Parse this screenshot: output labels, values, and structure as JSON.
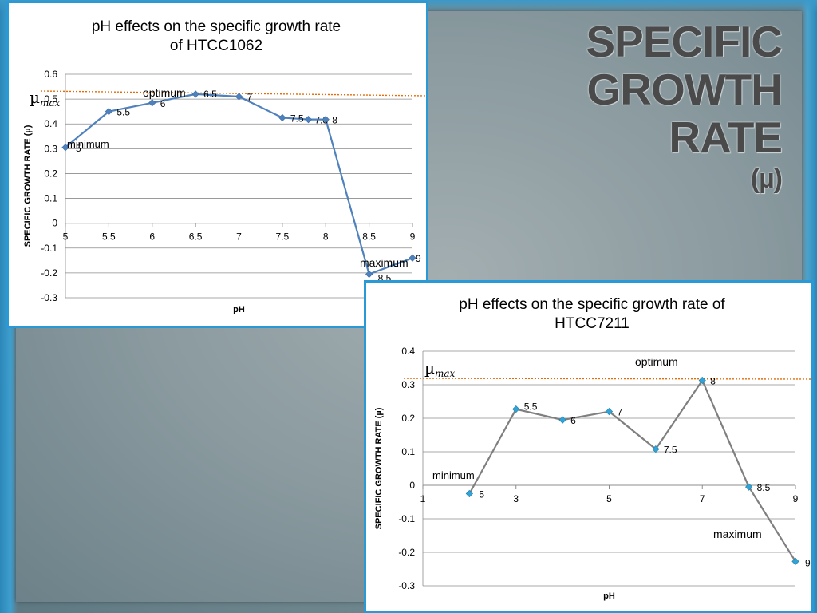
{
  "slide": {
    "title_lines": [
      "SPECIFIC",
      "GROWTH",
      "RATE"
    ],
    "title_symbol": "(µ)"
  },
  "chart_data": [
    {
      "type": "line",
      "title": [
        "pH effects on the specific growth rate",
        "of HTCC1062"
      ],
      "xlabel": "pH",
      "ylabel": "SPECIFIC GROWTH RATE (µ)",
      "xlim": [
        5,
        9
      ],
      "ylim": [
        -0.3,
        0.6
      ],
      "xticks": [
        "5",
        "5.5",
        "6",
        "6.5",
        "7",
        "7.5",
        "8",
        "8.5",
        "9"
      ],
      "yticks": [
        "0.6",
        "0.5",
        "0.4",
        "0.3",
        "0.2",
        "0.1",
        "0",
        "-0.1",
        "-0.2",
        "-0.3"
      ],
      "grid": true,
      "series_color": "#4f81bd",
      "points": [
        {
          "x": 5,
          "y": 0.305,
          "label": "5"
        },
        {
          "x": 5.5,
          "y": 0.45,
          "label": "5.5"
        },
        {
          "x": 6,
          "y": 0.485,
          "label": "6"
        },
        {
          "x": 6.5,
          "y": 0.52,
          "label": "6.5"
        },
        {
          "x": 7,
          "y": 0.51,
          "label": "7"
        },
        {
          "x": 7.5,
          "y": 0.425,
          "label": "7.5"
        },
        {
          "x": 7.8,
          "y": 0.418,
          "label": "7.8"
        },
        {
          "x": 8,
          "y": 0.418,
          "label": "8"
        },
        {
          "x": 8.5,
          "y": -0.205,
          "label": "8.5"
        },
        {
          "x": 9,
          "y": -0.14,
          "label": "9"
        }
      ],
      "reference_line": {
        "label": "µ",
        "label_sub": "max",
        "color": "#e36c0a"
      },
      "annotations": {
        "optimum": "optimum",
        "minimum": "minimum",
        "maximum": "maximum"
      }
    },
    {
      "type": "line",
      "title": [
        "pH effects on the specific growth rate of",
        "HTCC7211"
      ],
      "xlabel": "pH",
      "ylabel": "SPECIFIC GROWTH RATE (µ)",
      "xlim": [
        1,
        9
      ],
      "ylim": [
        -0.3,
        0.4
      ],
      "xticks": [
        "1",
        "3",
        "5",
        "7",
        "9"
      ],
      "yticks": [
        "0.4",
        "0.3",
        "0.2",
        "0.1",
        "0",
        "-0.1",
        "-0.2",
        "-0.3"
      ],
      "grid": true,
      "series_color": "#7f7f7f",
      "marker_color": "#31a3d6",
      "points": [
        {
          "x": 2,
          "y": -0.025,
          "label": "5"
        },
        {
          "x": 3,
          "y": 0.227,
          "label": "5.5"
        },
        {
          "x": 4,
          "y": 0.195,
          "label": "6"
        },
        {
          "x": 5,
          "y": 0.22,
          "label": "7"
        },
        {
          "x": 6,
          "y": 0.108,
          "label": "7.5"
        },
        {
          "x": 7,
          "y": 0.313,
          "label": "8"
        },
        {
          "x": 8,
          "y": -0.005,
          "label": "8.5"
        },
        {
          "x": 9,
          "y": -0.227,
          "label": "9"
        }
      ],
      "reference_line": {
        "label": "µ",
        "label_sub": "max",
        "color": "#e36c0a"
      },
      "annotations": {
        "optimum": "optimum",
        "minimum": "minimum",
        "maximum": "maximum"
      }
    }
  ]
}
